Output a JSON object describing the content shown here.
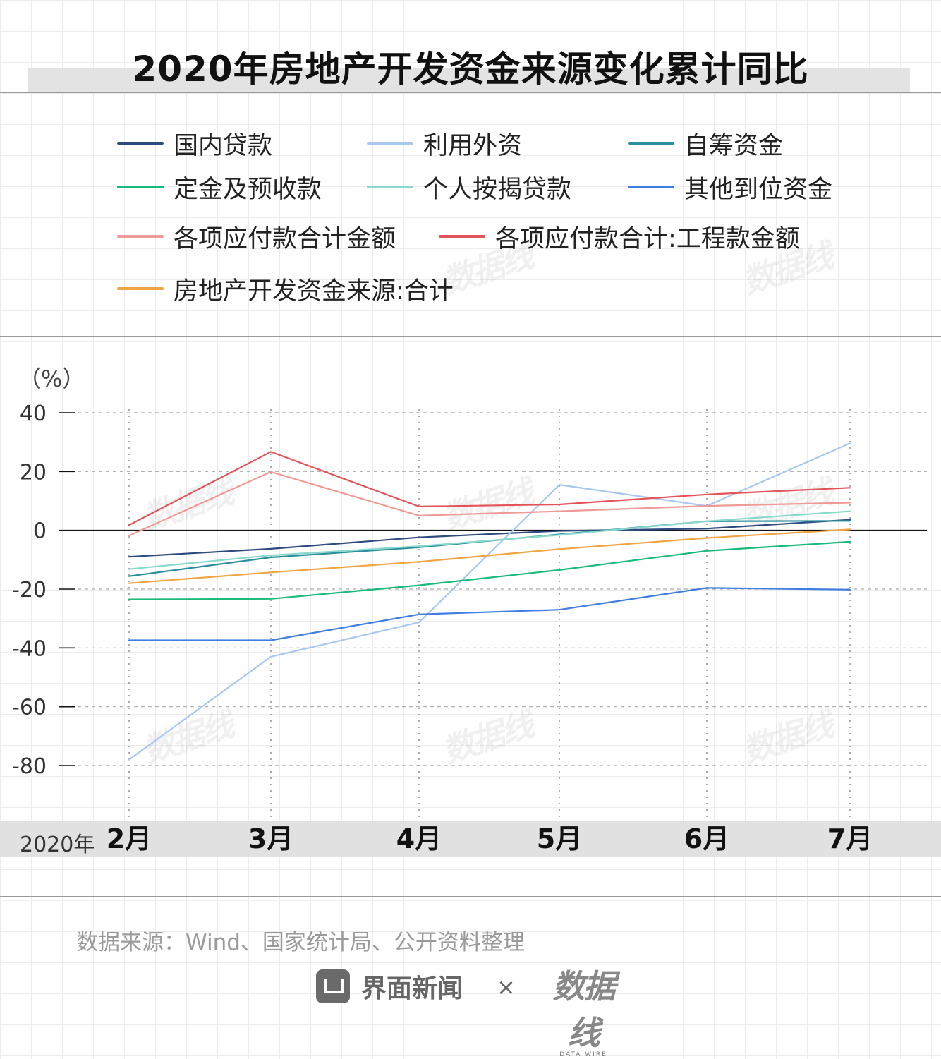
{
  "title": "2020年房地产开发资金来源变化累计同比",
  "unit": "（%）",
  "legend_order": [
    "国内贷款",
    "利用外资",
    "自筹资金",
    "定金及预收款",
    "个人按揭贷款",
    "其他到位资金",
    "各项应付款合计金额",
    "各项应付款合计:工程款金额",
    "房地产开发资金来源:合计"
  ],
  "chart_data": {
    "type": "line",
    "categories": [
      "2月",
      "3月",
      "4月",
      "5月",
      "6月",
      "7月"
    ],
    "x_prefix": "2020年",
    "ylabel": "（%）",
    "ylim": [
      -80,
      40
    ],
    "yticks": [
      "40",
      "20",
      "0",
      "-20",
      "-40",
      "-60",
      "-80"
    ],
    "ytick_values": [
      40,
      20,
      0,
      -20,
      -40,
      -60,
      -80
    ],
    "grid": true,
    "legend_position": "top",
    "series": [
      {
        "name": "国内贷款",
        "color": "#2e4a7f",
        "values": [
          -9,
          -6.3,
          -2.4,
          -0.2,
          0.6,
          3.6
        ]
      },
      {
        "name": "利用外资",
        "color": "#a9c8f0",
        "values": [
          -78,
          -43,
          -31.3,
          15.5,
          8.3,
          29.6
        ]
      },
      {
        "name": "自筹资金",
        "color": "#2a8f9c",
        "values": [
          -15.6,
          -9.2,
          -5.8,
          -1.4,
          3.1,
          3.2
        ]
      },
      {
        "name": "定金及预收款",
        "color": "#1ab97c",
        "values": [
          -23.5,
          -23.3,
          -18.7,
          -13.5,
          -7,
          -3.9
        ]
      },
      {
        "name": "个人按揭贷款",
        "color": "#8ad8cc",
        "values": [
          -13.2,
          -8.5,
          -5.4,
          -1.6,
          3.1,
          6.5
        ]
      },
      {
        "name": "其他到位资金",
        "color": "#3f7de0",
        "values": [
          -37.4,
          -37.4,
          -28.6,
          -27,
          -19.6,
          -20.2
        ]
      },
      {
        "name": "各项应付款合计金额",
        "color": "#f09a98",
        "values": [
          -1.8,
          19.9,
          5,
          6.5,
          8.3,
          9.4
        ]
      },
      {
        "name": "各项应付款合计:工程款金额",
        "color": "#e3535a",
        "values": [
          1.8,
          26.7,
          8.1,
          8.8,
          12.2,
          14.5
        ]
      },
      {
        "name": "房地产开发资金来源:合计",
        "color": "#f0a443",
        "values": [
          -18,
          -14.3,
          -10.7,
          -6.4,
          -2.6,
          0.3
        ]
      }
    ]
  },
  "source": "数据来源：Wind、国家统计局、公开资料整理",
  "brand": "界面新闻",
  "times": "×",
  "partner": "数据线",
  "partner_sub": "DATA WIRE"
}
